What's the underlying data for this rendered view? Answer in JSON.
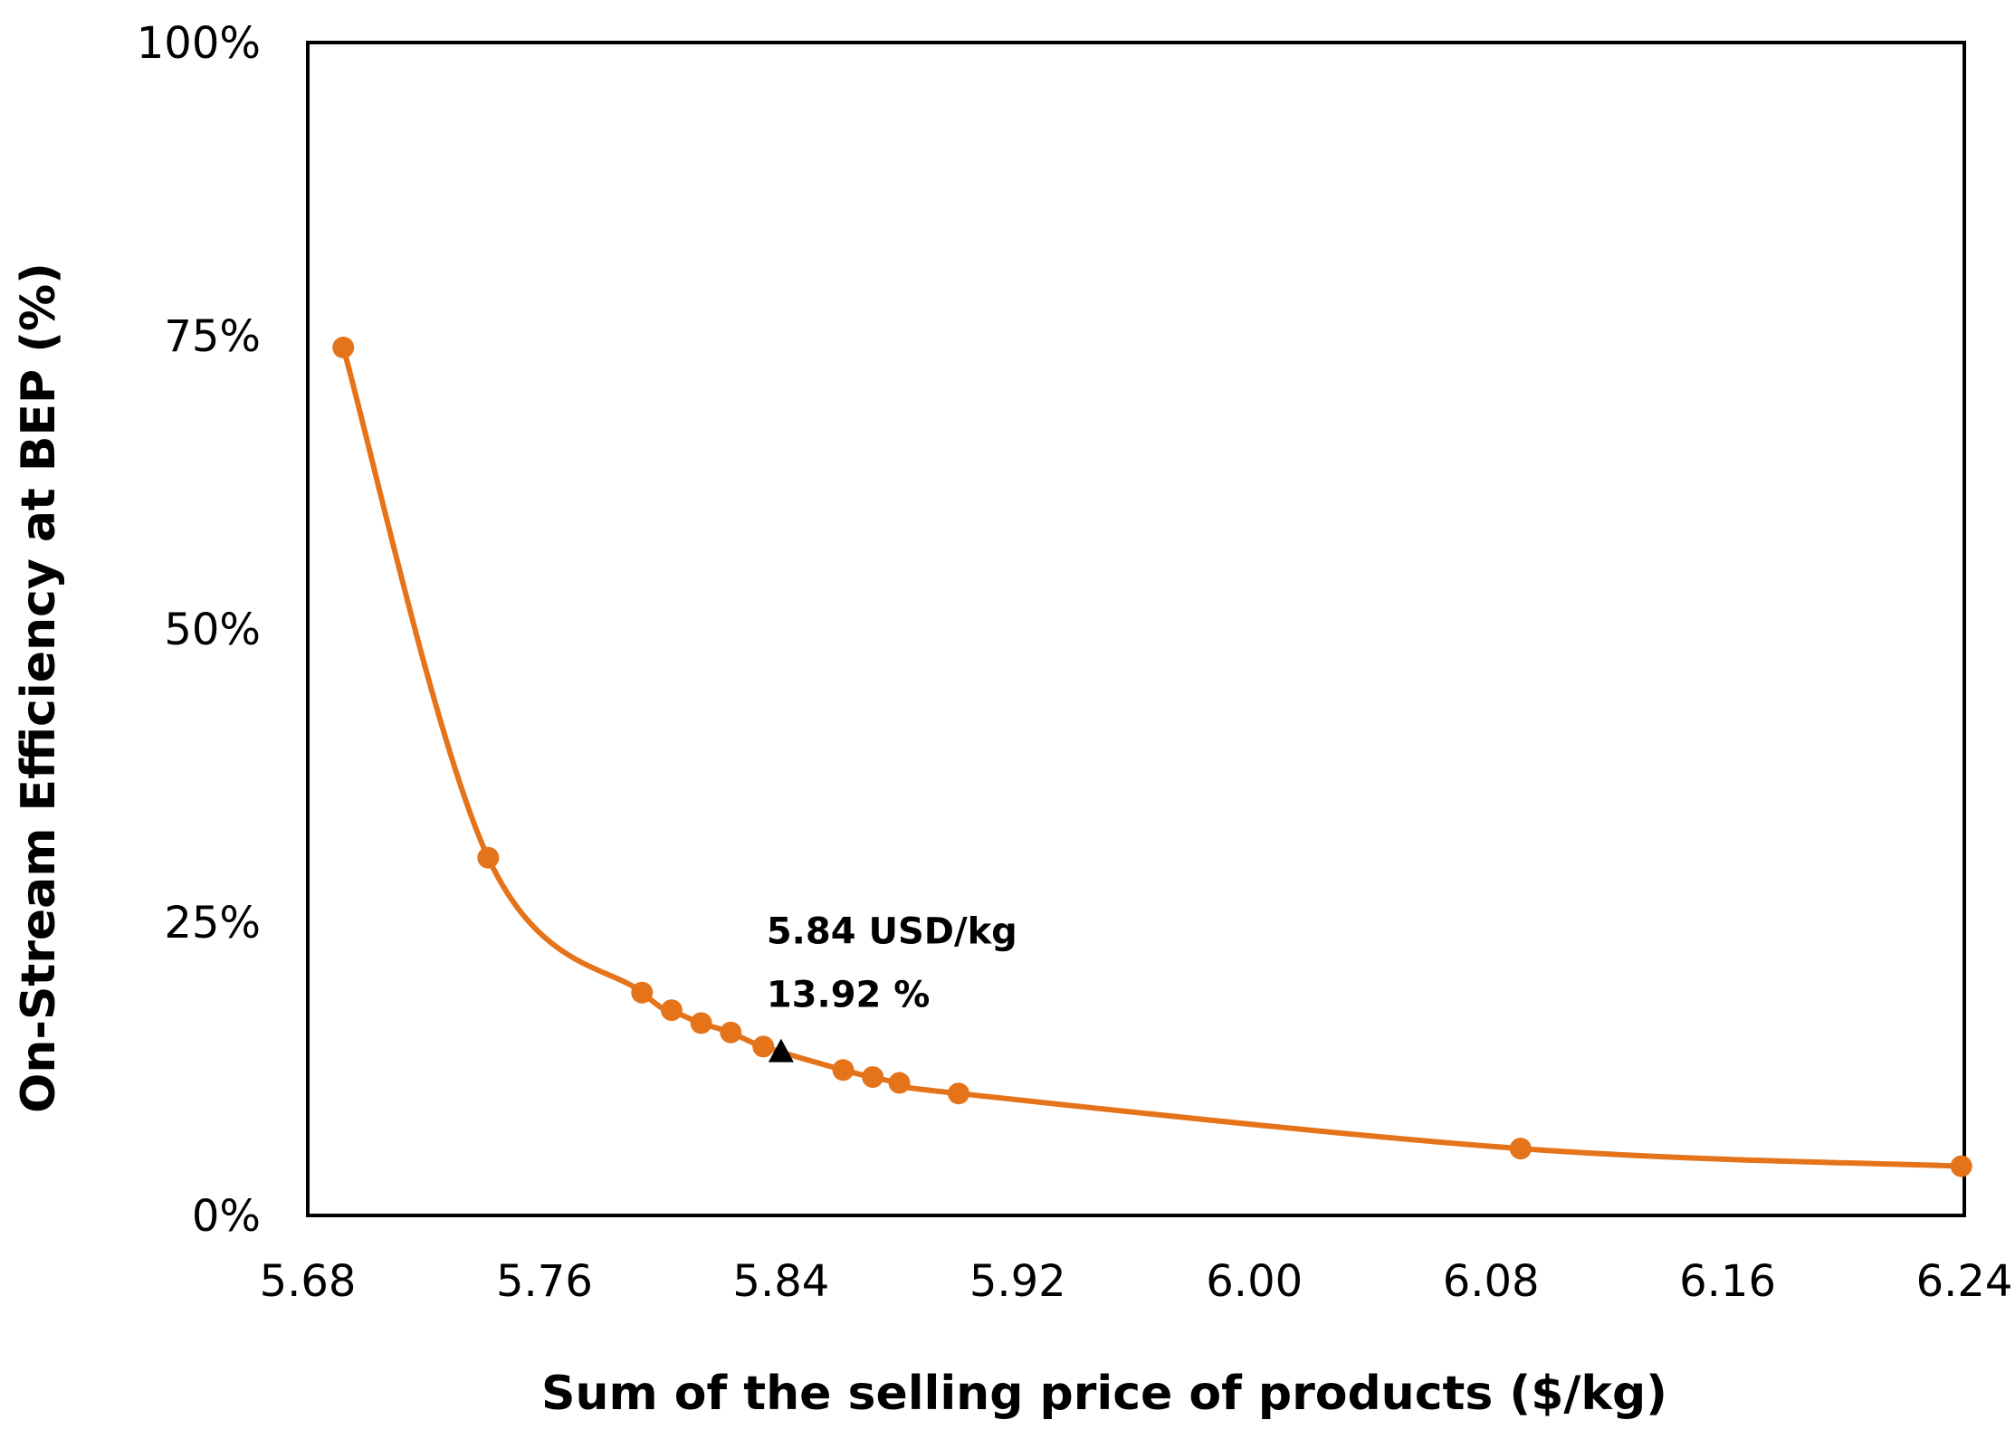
{
  "chart_data": {
    "type": "line",
    "title": "",
    "xlabel": "Sum of the selling price of products ($/kg)",
    "ylabel": "On-Stream Efficiency at BEP (%)",
    "xlim": [
      5.68,
      6.24
    ],
    "ylim": [
      0,
      100
    ],
    "x_ticks": [
      "5.68",
      "5.76",
      "5.84",
      "5.92",
      "6.00",
      "6.08",
      "6.16",
      "6.24"
    ],
    "y_ticks": [
      "0%",
      "25%",
      "50%",
      "75%",
      "100%"
    ],
    "grid": false,
    "series": [
      {
        "name": "On-Stream Efficiency",
        "color": "#E5731A",
        "marker": "circle",
        "x": [
          5.692,
          5.741,
          5.793,
          5.803,
          5.813,
          5.823,
          5.834,
          5.861,
          5.871,
          5.88,
          5.9,
          6.09,
          6.239
        ],
        "y": [
          74.0,
          30.5,
          19.0,
          17.5,
          16.4,
          15.6,
          14.4,
          12.4,
          11.8,
          11.3,
          10.4,
          5.7,
          4.2
        ]
      }
    ],
    "highlight": {
      "x": 5.84,
      "y": 13.92,
      "marker": "triangle",
      "color": "#000000",
      "label_line1": "5.84 USD/kg",
      "label_line2": "13.92 %"
    }
  }
}
